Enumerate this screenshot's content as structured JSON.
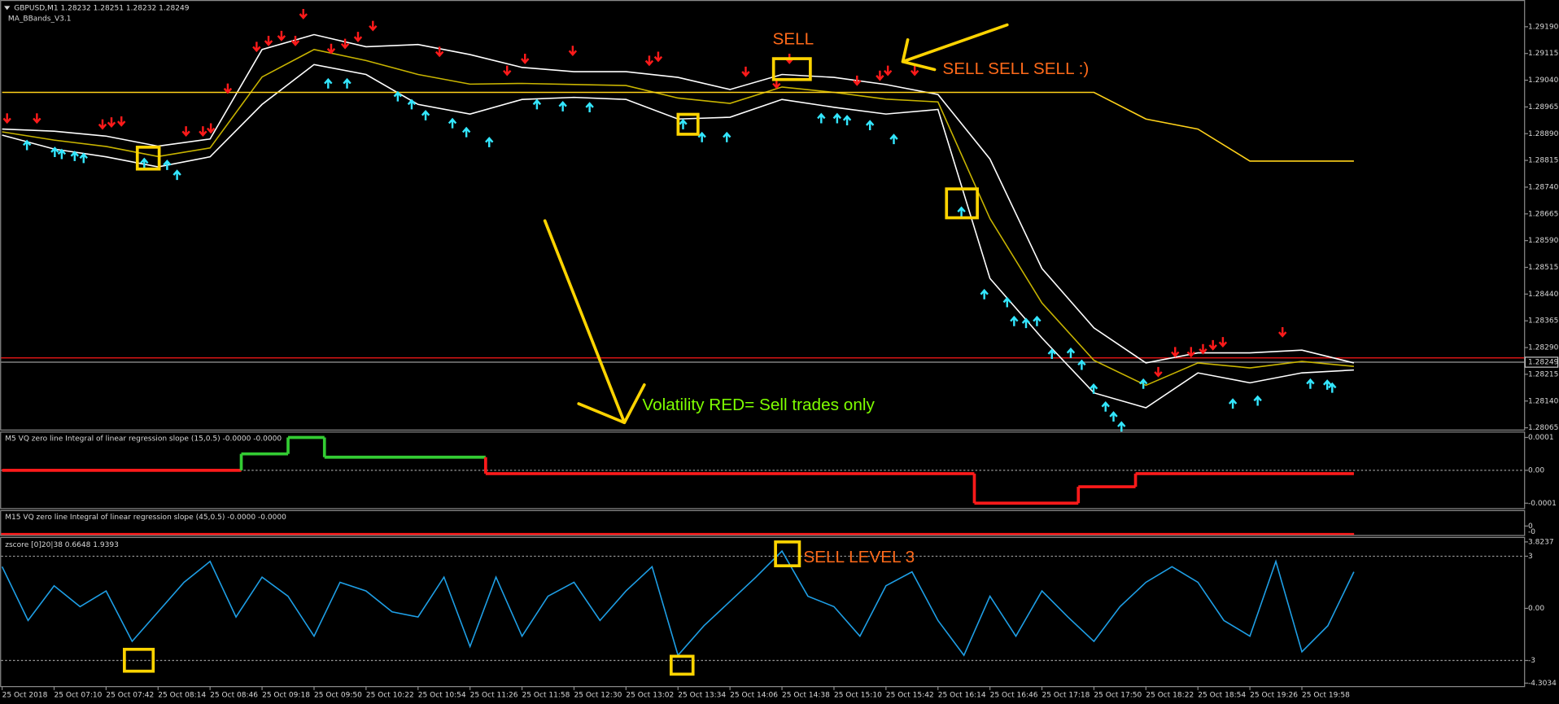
{
  "chart_data": [
    {
      "type": "line",
      "title": "GBPUSD,M1  1.28232 1.28251 1.28232 1.28249",
      "subtitle": "MA_BBands_V3.1",
      "categories": [
        "25 Oct 2018",
        "25 Oct 07:10",
        "25 Oct 07:42",
        "25 Oct 08:14",
        "25 Oct 08:46",
        "25 Oct 09:18",
        "25 Oct 09:50",
        "25 Oct 10:22",
        "25 Oct 10:54",
        "25 Oct 11:26",
        "25 Oct 11:58",
        "25 Oct 12:30",
        "25 Oct 13:02",
        "25 Oct 13:34",
        "25 Oct 14:06",
        "25 Oct 14:38",
        "25 Oct 15:10",
        "25 Oct 15:42",
        "25 Oct 16:14",
        "25 Oct 16:46",
        "25 Oct 17:18",
        "25 Oct 17:50",
        "25 Oct 18:22",
        "25 Oct 18:54",
        "25 Oct 19:26",
        "25 Oct 19:58",
        null
      ],
      "series": [
        {
          "color": "#ffffff",
          "values": [
            1.28903,
            1.28897,
            1.28883,
            1.28855,
            1.28875,
            1.29126,
            1.29168,
            1.29134,
            1.2914,
            1.29112,
            1.29076,
            1.29064,
            1.29064,
            1.29048,
            1.29014,
            1.29056,
            1.29048,
            1.29028,
            1.29,
            1.28819,
            1.28512,
            1.28345,
            1.28247,
            1.28275,
            1.28275,
            1.28283,
            1.28247
          ]
        },
        {
          "color": "#ffffff",
          "values": [
            1.28886,
            1.28847,
            1.28825,
            1.28797,
            1.28825,
            1.28972,
            1.29084,
            1.29056,
            1.28972,
            1.28945,
            1.28986,
            1.28992,
            1.28986,
            1.28931,
            1.28936,
            1.28986,
            1.28964,
            1.28945,
            1.28958,
            1.28484,
            1.28317,
            1.28163,
            1.28121,
            1.28219,
            1.28191,
            1.28219,
            1.28227
          ]
        },
        {
          "color": "#c8b400",
          "values": [
            1.28895,
            1.28872,
            1.28854,
            1.28826,
            1.2885,
            1.29049,
            1.29126,
            1.29095,
            1.29056,
            1.29029,
            1.29031,
            1.29028,
            1.29025,
            1.2899,
            1.28975,
            1.29021,
            1.29006,
            1.28987,
            1.28979,
            1.28652,
            1.28415,
            1.28254,
            1.28184,
            1.28247,
            1.28233,
            1.28251,
            1.28237
          ]
        },
        {
          "color": "#ffd21a",
          "values": [
            1.29006,
            1.29006,
            1.29006,
            1.29006,
            1.29006,
            1.29006,
            1.29006,
            1.29006,
            1.29006,
            1.29006,
            1.29006,
            1.29006,
            1.29006,
            1.29006,
            1.29006,
            1.29006,
            1.29006,
            1.29006,
            1.29006,
            1.29006,
            1.29006,
            1.29006,
            1.28931,
            1.28903,
            1.28813,
            1.28813,
            1.28813
          ]
        }
      ],
      "ylim": [
        1.2806,
        1.29265
      ],
      "yticks": [
        {
          "value": 1.2919,
          "label": "1.29190"
        },
        1.29115,
        {
          "value": 1.2904,
          "label": "1.29040"
        },
        1.28965,
        {
          "value": 1.2889,
          "label": "1.28890"
        },
        1.28815,
        {
          "value": 1.2874,
          "label": "1.28740"
        },
        1.28665,
        {
          "value": 1.2859,
          "label": "1.28590"
        },
        1.28515,
        {
          "value": 1.2844,
          "label": "1.28440"
        },
        1.28365,
        {
          "value": 1.2829,
          "label": "1.28290"
        },
        1.28215,
        {
          "value": 1.2814,
          "label": "1.28140"
        },
        1.28065
      ],
      "current_price": 1.28249,
      "ask_line": 1.28261,
      "annotations": [
        "SELL",
        "SELL SELL SELL :)",
        "Volatility RED= Sell trades only"
      ]
    },
    {
      "type": "step",
      "title": "M5 VQ zero line Integral of linear regression slope (15,0.5) -0.0000 -0.0000",
      "x": [
        0,
        4.6,
        5.5,
        6.2,
        9.3,
        18.7,
        20.7,
        21.8
      ],
      "xlim": [
        0,
        26
      ],
      "values": [
        0,
        5e-05,
        0.0001,
        4e-05,
        -1e-05,
        -0.0001,
        -5e-05,
        -1e-05
      ],
      "colors": [
        "#ff1a1a",
        "#33cc33",
        "#33cc33",
        "#33cc33",
        "#ff1a1a",
        "#ff1a1a",
        "#ff1a1a",
        "#ff1a1a"
      ],
      "ylim": [
        -0.000115,
        0.000118
      ],
      "yticks": [
        0.0001,
        {
          "value": 0,
          "label": "0.00"
        },
        -0.0001
      ],
      "levels": [
        0
      ]
    },
    {
      "type": "flat",
      "title": "M15 VQ zero line Integral of linear regression slope (45,0.5) -0.0000 -0.0000",
      "tick_labels": [
        "0",
        "-0"
      ]
    },
    {
      "type": "line",
      "title": "zscore [0]20|38 0.6648 1.9393",
      "color": "#1e9fe6",
      "x": [
        0,
        0.5,
        1,
        1.5,
        2,
        2.5,
        3,
        3.5,
        4,
        4.5,
        5,
        5.5,
        6,
        6.5,
        7,
        7.5,
        8,
        8.5,
        9,
        9.5,
        10,
        10.5,
        11,
        11.5,
        12,
        12.5,
        13,
        13.5,
        14,
        14.5,
        15,
        15.5,
        16,
        16.5,
        17,
        17.5,
        18,
        18.5,
        19,
        19.5,
        20,
        20.5,
        21,
        21.5,
        22,
        22.5,
        23,
        23.5,
        24,
        24.5,
        25,
        25.5,
        26
      ],
      "values": [
        2.4,
        -0.7,
        1.3,
        0.1,
        1.0,
        -1.9,
        -0.2,
        1.5,
        2.7,
        -0.5,
        1.8,
        0.7,
        -1.6,
        1.5,
        1.0,
        -0.2,
        -0.5,
        1.8,
        -2.2,
        1.8,
        -1.6,
        0.7,
        1.5,
        -0.7,
        1.0,
        2.4,
        -2.7,
        -1.0,
        0.4,
        1.8,
        3.3,
        0.7,
        0.1,
        -1.6,
        1.3,
        2.1,
        -0.7,
        -2.7,
        0.7,
        -1.6,
        1.0,
        -0.5,
        -1.9,
        0.1,
        1.5,
        2.4,
        1.5,
        -0.7,
        -1.6,
        2.7,
        -2.5,
        -1.0,
        2.1
      ],
      "ylim": [
        -4.3034,
        3.8237
      ],
      "yticks": [
        3.8237,
        3,
        {
          "value": 0,
          "label": "0.00"
        },
        -3,
        -4.3034
      ],
      "levels": [
        3,
        -3
      ],
      "annotations": [
        "SELL LEVEL 3"
      ]
    }
  ]
}
